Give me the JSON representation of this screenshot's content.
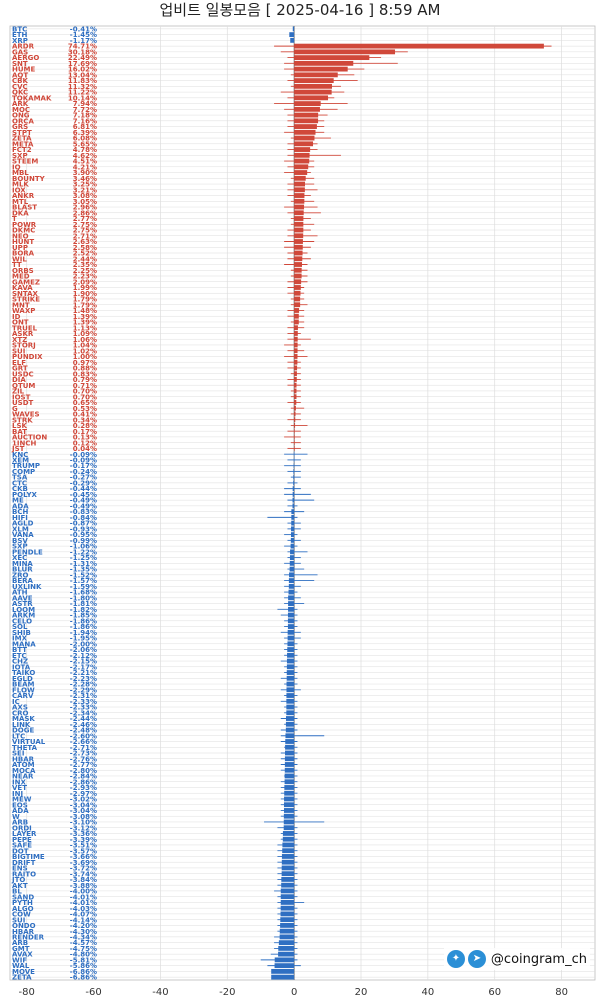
{
  "header": {
    "title": "업비트 일봉모음 [ 2025-04-16 ]  8:59 AM"
  },
  "brand": {
    "handle": "@coingram_ch",
    "twitter_icon": "twitter-icon",
    "telegram_icon": "telegram-icon"
  },
  "colors": {
    "positive": "#d0483a",
    "negative": "#2f6fc2",
    "grid": "#dddddd"
  },
  "chart_data": {
    "type": "bar",
    "orientation": "horizontal",
    "title": "업비트 일봉모음 [ 2025-04-16 ]  8:59 AM",
    "xlim": [
      -85,
      90
    ],
    "x_ticks": [
      -80,
      -60,
      -40,
      -20,
      0,
      20,
      40,
      60,
      80
    ],
    "grid": true,
    "pinned": [
      {
        "name": "BTC",
        "value": -0.41
      },
      {
        "name": "ETH",
        "value": -1.45
      },
      {
        "name": "XRP",
        "value": -1.17
      }
    ],
    "categories": [
      "ARDR",
      "GAS",
      "AERGO",
      "SNT",
      "HUME",
      "AQT",
      "CBK",
      "CVC",
      "QKC",
      "TOKAMAK",
      "ARK",
      "MOC",
      "ONG",
      "ORCA",
      "GRS",
      "STPT",
      "ZETA",
      "META",
      "FCT2",
      "SXP",
      "STEEM",
      "IQ",
      "MBL",
      "BOUNTY",
      "MLK",
      "IOX",
      "ANKR",
      "MTL",
      "BLAST",
      "DKA",
      "T",
      "POWR",
      "DKMC",
      "NEO",
      "HUNT",
      "UPP",
      "BORA",
      "WIL",
      "TT",
      "ORBS",
      "MED",
      "GAMEZ",
      "KAVA",
      "SNTAX",
      "STRIKE",
      "MNT",
      "WAXP",
      "ID",
      "ONT",
      "TRUEL",
      "ASKR",
      "XTZ",
      "STORJ",
      "SUI",
      "PUNDIX",
      "ELF",
      "GRT",
      "USDC",
      "DIA",
      "QTUM",
      "ZIL",
      "IOST",
      "USDT",
      "G",
      "WAVES",
      "STRK",
      "LSK",
      "BAT",
      "AUCTION",
      "1INCH",
      "JST",
      "KNC",
      "XEM",
      "TRUMP",
      "COMP",
      "TSA",
      "CTC",
      "CKB",
      "POLYX",
      "ME",
      "ADA",
      "BCH",
      "HIFI",
      "AGLD",
      "XLM",
      "VANA",
      "BSV",
      "SXP",
      "PENDLE",
      "XEC",
      "MINA",
      "BLUR",
      "ZRO",
      "BERA",
      "UXLINK",
      "ATH",
      "AAVE",
      "ASTR",
      "LOOM",
      "ARKM",
      "CELO",
      "SOL",
      "SHIB",
      "IMX",
      "MANA",
      "BTT",
      "ETC",
      "CHZ",
      "IOTA",
      "TAIKO",
      "EGLD",
      "BEAM",
      "FLOW",
      "CARV",
      "IC",
      "AXS",
      "CRO",
      "MASK",
      "LINK",
      "DOGE",
      "LTC",
      "VIRTUAL",
      "THETA",
      "SEI",
      "HBAR",
      "ATOM",
      "MOCA",
      "NEAR",
      "INX",
      "VET",
      "INJ",
      "MEW",
      "EOS",
      "ADA",
      "W",
      "ARB",
      "ORDI",
      "LAYER",
      "PEPE",
      "SAFE",
      "DOT",
      "BIGTIME",
      "DRIFT",
      "ENS",
      "RAITO",
      "JTO",
      "AKT",
      "BL",
      "SAND",
      "PYTH",
      "ALGO",
      "COW",
      "SUI",
      "ONDO",
      "HBAR",
      "RENDER",
      "ARB",
      "GMT",
      "AVAX",
      "WIF",
      "WAL",
      "MOVE",
      "ZETA"
    ],
    "values": [
      74.71,
      30.18,
      22.49,
      17.69,
      16.02,
      13.04,
      11.83,
      11.32,
      11.22,
      10.14,
      7.94,
      7.72,
      7.18,
      7.16,
      6.81,
      6.39,
      6.08,
      5.65,
      4.78,
      4.62,
      4.51,
      4.21,
      3.9,
      3.46,
      3.25,
      3.21,
      3.08,
      3.05,
      2.96,
      2.86,
      2.77,
      2.75,
      2.75,
      2.71,
      2.63,
      2.58,
      2.52,
      2.44,
      2.35,
      2.25,
      2.23,
      2.09,
      1.99,
      1.9,
      1.79,
      1.79,
      1.48,
      1.39,
      1.39,
      1.13,
      1.09,
      1.06,
      1.04,
      1.02,
      1.0,
      0.97,
      0.88,
      0.83,
      0.79,
      0.71,
      0.7,
      0.7,
      0.65,
      0.53,
      0.41,
      0.34,
      0.28,
      0.17,
      0.13,
      0.12,
      0.04,
      -0.09,
      -0.09,
      -0.17,
      -0.24,
      -0.27,
      -0.29,
      -0.44,
      -0.45,
      -0.49,
      -0.49,
      -0.83,
      -0.84,
      -0.87,
      -0.93,
      -0.95,
      -0.99,
      -1.06,
      -1.22,
      -1.25,
      -1.31,
      -1.35,
      -1.52,
      -1.57,
      -1.59,
      -1.68,
      -1.8,
      -1.81,
      -1.82,
      -1.85,
      -1.86,
      -1.86,
      -1.94,
      -1.95,
      -2.0,
      -2.06,
      -2.12,
      -2.15,
      -2.17,
      -2.21,
      -2.23,
      -2.28,
      -2.29,
      -2.31,
      -2.33,
      -2.33,
      -2.34,
      -2.44,
      -2.46,
      -2.48,
      -2.6,
      -2.66,
      -2.71,
      -2.73,
      -2.76,
      -2.77,
      -2.8,
      -2.84,
      -2.86,
      -2.93,
      -2.97,
      -3.02,
      -3.04,
      -3.04,
      -3.08,
      -3.1,
      -3.12,
      -3.36,
      -3.39,
      -3.51,
      -3.57,
      -3.66,
      -3.69,
      -3.72,
      -3.74,
      -3.84,
      -3.88,
      -4.0,
      -4.01,
      -4.01,
      -4.03,
      -4.07,
      -4.14,
      -4.2,
      -4.3,
      -4.34,
      -4.57,
      -4.75,
      -4.8,
      -5.81,
      -5.86,
      -6.86,
      -6.86
    ],
    "ranges": [
      [
        -6,
        77
      ],
      [
        -4,
        34
      ],
      [
        -2,
        26
      ],
      [
        -3,
        31
      ],
      [
        -3,
        21
      ],
      [
        -1,
        18
      ],
      [
        -2,
        19
      ],
      [
        -1,
        14
      ],
      [
        -4,
        15
      ],
      [
        -2,
        12
      ],
      [
        -6,
        16
      ],
      [
        -3,
        13
      ],
      [
        -2,
        10
      ],
      [
        -2,
        9
      ],
      [
        -2,
        9
      ],
      [
        -3,
        9
      ],
      [
        -1,
        11
      ],
      [
        -2,
        7
      ],
      [
        -2,
        7
      ],
      [
        -2,
        14
      ],
      [
        -3,
        6
      ],
      [
        -2,
        6
      ],
      [
        -3,
        5
      ],
      [
        -1,
        6
      ],
      [
        -2,
        6
      ],
      [
        -2,
        7
      ],
      [
        -2,
        5
      ],
      [
        -1,
        6
      ],
      [
        -3,
        7
      ],
      [
        -2,
        8
      ],
      [
        -1,
        5
      ],
      [
        -1,
        6
      ],
      [
        -2,
        5
      ],
      [
        -2,
        7
      ],
      [
        -3,
        6
      ],
      [
        -3,
        5
      ],
      [
        -2,
        4
      ],
      [
        -2,
        5
      ],
      [
        -3,
        4
      ],
      [
        -1,
        4
      ],
      [
        -1,
        4
      ],
      [
        -2,
        4
      ],
      [
        -2,
        3
      ],
      [
        -2,
        3
      ],
      [
        -1,
        3
      ],
      [
        -1,
        4
      ],
      [
        -2,
        3
      ],
      [
        -2,
        3
      ],
      [
        -1,
        3
      ],
      [
        -2,
        3
      ],
      [
        -2,
        2
      ],
      [
        -2,
        5
      ],
      [
        -3,
        2
      ],
      [
        -2,
        3
      ],
      [
        -3,
        4
      ],
      [
        -2,
        2
      ],
      [
        -2,
        2
      ],
      [
        -1,
        2
      ],
      [
        -2,
        2
      ],
      [
        -2,
        2
      ],
      [
        -1,
        2
      ],
      [
        -1,
        2
      ],
      [
        -2,
        2
      ],
      [
        -1,
        3
      ],
      [
        -1,
        2
      ],
      [
        -2,
        2
      ],
      [
        -1,
        4
      ],
      [
        -2,
        2
      ],
      [
        -3,
        2
      ],
      [
        -1,
        2
      ],
      [
        -2,
        2
      ],
      [
        -3,
        4
      ],
      [
        -2,
        2
      ],
      [
        -3,
        2
      ],
      [
        -2,
        2
      ],
      [
        -1,
        2
      ],
      [
        -2,
        1
      ],
      [
        -3,
        2
      ],
      [
        -3,
        5
      ],
      [
        -2,
        6
      ],
      [
        -2,
        1
      ],
      [
        -3,
        3
      ],
      [
        -8,
        1
      ],
      [
        -2,
        2
      ],
      [
        -2,
        2
      ],
      [
        -3,
        1
      ],
      [
        -2,
        2
      ],
      [
        -3,
        1
      ],
      [
        -2,
        4
      ],
      [
        -2,
        2
      ],
      [
        -3,
        2
      ],
      [
        -2,
        3
      ],
      [
        -3,
        7
      ],
      [
        -3,
        6
      ],
      [
        -3,
        2
      ],
      [
        -3,
        1
      ],
      [
        -3,
        2
      ],
      [
        -3,
        3
      ],
      [
        -5,
        1
      ],
      [
        -4,
        1
      ],
      [
        -3,
        1
      ],
      [
        -3,
        1
      ],
      [
        -4,
        2
      ],
      [
        -3,
        2
      ],
      [
        -3,
        1
      ],
      [
        -3,
        1
      ],
      [
        -3,
        1
      ],
      [
        -4,
        1
      ],
      [
        -3,
        1
      ],
      [
        -3,
        1
      ],
      [
        -4,
        1
      ],
      [
        -3,
        1
      ],
      [
        -4,
        2
      ],
      [
        -3,
        1
      ],
      [
        -4,
        1
      ],
      [
        -3,
        1
      ],
      [
        -3,
        1
      ],
      [
        -4,
        1
      ],
      [
        -3,
        1
      ],
      [
        -4,
        1
      ],
      [
        -4,
        9
      ],
      [
        -4,
        1
      ],
      [
        -3,
        1
      ],
      [
        -4,
        1
      ],
      [
        -4,
        1
      ],
      [
        -4,
        1
      ],
      [
        -4,
        1
      ],
      [
        -3,
        1
      ],
      [
        -4,
        1
      ],
      [
        -4,
        1
      ],
      [
        -4,
        1
      ],
      [
        -4,
        1
      ],
      [
        -4,
        1
      ],
      [
        -4,
        1
      ],
      [
        -4,
        1
      ],
      [
        -9,
        9
      ],
      [
        -5,
        1
      ],
      [
        -4,
        1
      ],
      [
        -4,
        1
      ],
      [
        -5,
        1
      ],
      [
        -5,
        1
      ],
      [
        -5,
        1
      ],
      [
        -5,
        1
      ],
      [
        -5,
        1
      ],
      [
        -5,
        1
      ],
      [
        -5,
        1
      ],
      [
        -5,
        1
      ],
      [
        -6,
        1
      ],
      [
        -5,
        1
      ],
      [
        -5,
        3
      ],
      [
        -5,
        1
      ],
      [
        -5,
        1
      ],
      [
        -5,
        1
      ],
      [
        -5,
        1
      ],
      [
        -5,
        1
      ],
      [
        -6,
        1
      ],
      [
        -6,
        1
      ],
      [
        -6,
        1
      ],
      [
        -7,
        1
      ],
      [
        -10,
        1
      ],
      [
        -8,
        2
      ]
    ]
  }
}
